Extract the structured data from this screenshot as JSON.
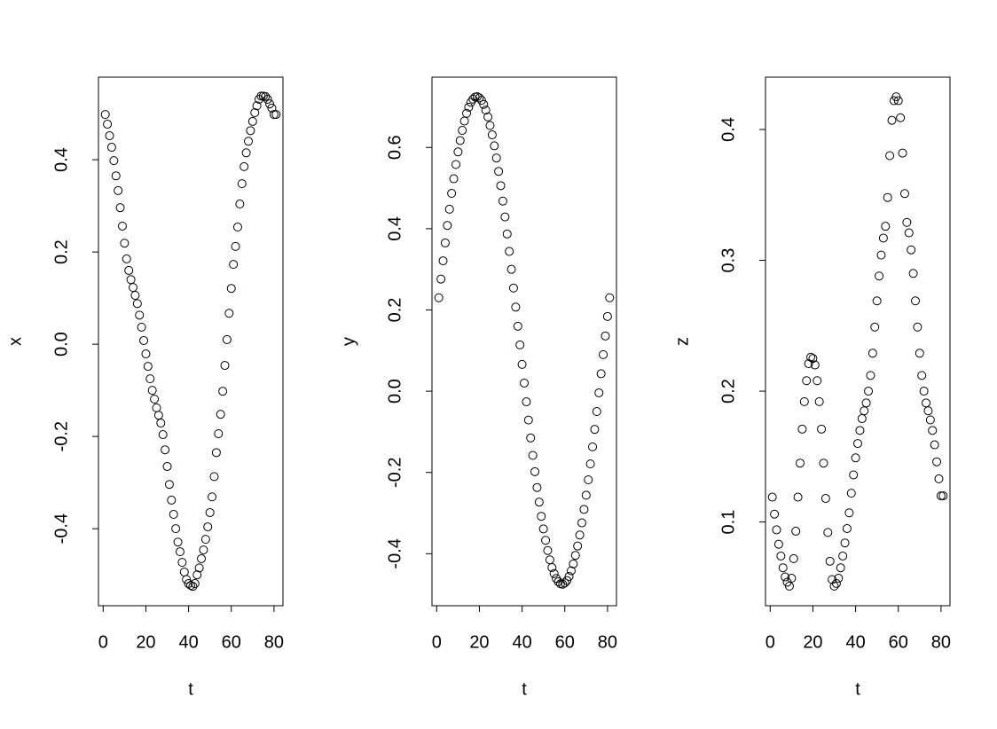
{
  "chart_data": [
    {
      "type": "scatter",
      "xlabel": "t",
      "ylabel": "x",
      "color": "#000000",
      "x": [
        1,
        2,
        3,
        4,
        5,
        6,
        7,
        8,
        9,
        10,
        11,
        12,
        13,
        14,
        15,
        16,
        17,
        18,
        19,
        20,
        21,
        22,
        23,
        24,
        25,
        26,
        27,
        28,
        29,
        30,
        31,
        32,
        33,
        34,
        35,
        36,
        37,
        38,
        39,
        40,
        41,
        42,
        43,
        44,
        45,
        46,
        47,
        48,
        49,
        50,
        51,
        52,
        53,
        54,
        55,
        56,
        57,
        58,
        59,
        60,
        61,
        62,
        63,
        64,
        65,
        66,
        67,
        68,
        69,
        70,
        71,
        72,
        73,
        74,
        75,
        76,
        77,
        78,
        79,
        80,
        81
      ],
      "values": [
        0.498,
        0.477,
        0.452,
        0.427,
        0.398,
        0.365,
        0.333,
        0.296,
        0.256,
        0.219,
        0.185,
        0.16,
        0.14,
        0.123,
        0.106,
        0.088,
        0.063,
        0.037,
        0.008,
        -0.021,
        -0.048,
        -0.075,
        -0.1,
        -0.119,
        -0.138,
        -0.154,
        -0.171,
        -0.196,
        -0.229,
        -0.265,
        -0.304,
        -0.338,
        -0.369,
        -0.4,
        -0.429,
        -0.45,
        -0.473,
        -0.494,
        -0.51,
        -0.519,
        -0.523,
        -0.525,
        -0.519,
        -0.5,
        -0.485,
        -0.465,
        -0.446,
        -0.423,
        -0.396,
        -0.365,
        -0.331,
        -0.287,
        -0.235,
        -0.194,
        -0.152,
        -0.102,
        -0.046,
        0.01,
        0.067,
        0.121,
        0.173,
        0.212,
        0.254,
        0.304,
        0.348,
        0.385,
        0.415,
        0.44,
        0.463,
        0.483,
        0.502,
        0.517,
        0.531,
        0.538,
        0.538,
        0.537,
        0.531,
        0.521,
        0.512,
        0.498,
        0.498
      ],
      "xlim": [
        -2.2,
        84.2
      ],
      "ylim": [
        -0.567,
        0.579
      ],
      "xticks": [
        0,
        20,
        40,
        60,
        80
      ],
      "yticks": [
        -0.4,
        -0.2,
        {
          "value": 0,
          "label": "0.0"
        },
        0.2,
        0.4
      ]
    },
    {
      "type": "scatter",
      "xlabel": "t",
      "ylabel": "y",
      "color": "#000000",
      "x": [
        1,
        2,
        3,
        4,
        5,
        6,
        7,
        8,
        9,
        10,
        11,
        12,
        13,
        14,
        15,
        16,
        17,
        18,
        19,
        20,
        21,
        22,
        23,
        24,
        25,
        26,
        27,
        28,
        29,
        30,
        31,
        32,
        33,
        34,
        35,
        36,
        37,
        38,
        39,
        40,
        41,
        42,
        43,
        44,
        45,
        46,
        47,
        48,
        49,
        50,
        51,
        52,
        53,
        54,
        55,
        56,
        57,
        58,
        59,
        60,
        61,
        62,
        63,
        64,
        65,
        66,
        67,
        68,
        69,
        70,
        71,
        72,
        73,
        74,
        75,
        76,
        77,
        78,
        79,
        80,
        81
      ],
      "values": [
        0.23,
        0.276,
        0.321,
        0.365,
        0.408,
        0.448,
        0.487,
        0.523,
        0.558,
        0.589,
        0.617,
        0.642,
        0.665,
        0.684,
        0.699,
        0.711,
        0.719,
        0.724,
        0.725,
        0.722,
        0.716,
        0.706,
        0.692,
        0.675,
        0.654,
        0.631,
        0.604,
        0.574,
        0.541,
        0.506,
        0.468,
        0.429,
        0.387,
        0.344,
        0.3,
        0.254,
        0.207,
        0.16,
        0.114,
        0.066,
        0.02,
        -0.026,
        -0.071,
        -0.115,
        -0.158,
        -0.198,
        -0.237,
        -0.273,
        -0.308,
        -0.339,
        -0.367,
        -0.392,
        -0.415,
        -0.434,
        -0.449,
        -0.461,
        -0.469,
        -0.474,
        -0.475,
        -0.472,
        -0.466,
        -0.456,
        -0.442,
        -0.425,
        -0.404,
        -0.381,
        -0.354,
        -0.324,
        -0.291,
        -0.256,
        -0.218,
        -0.179,
        -0.137,
        -0.094,
        -0.05,
        -0.004,
        0.043,
        0.09,
        0.136,
        0.184,
        0.23
      ],
      "xlim": [
        -2.2,
        84.2
      ],
      "ylim": [
        -0.528,
        0.773
      ],
      "xticks": [
        0,
        20,
        40,
        60,
        80
      ],
      "yticks": [
        -0.4,
        -0.2,
        {
          "value": 0,
          "label": "0.0"
        },
        0.2,
        0.4,
        0.6
      ]
    },
    {
      "type": "scatter",
      "xlabel": "t",
      "ylabel": "z",
      "color": "#000000",
      "x": [
        1,
        2,
        3,
        4,
        5,
        6,
        7,
        8,
        9,
        10,
        11,
        12,
        13,
        14,
        15,
        16,
        17,
        18,
        19,
        20,
        21,
        22,
        23,
        24,
        25,
        26,
        27,
        28,
        29,
        30,
        31,
        32,
        33,
        34,
        35,
        36,
        37,
        38,
        39,
        40,
        41,
        42,
        43,
        44,
        45,
        46,
        47,
        48,
        49,
        50,
        51,
        52,
        53,
        54,
        55,
        56,
        57,
        58,
        59,
        60,
        61,
        62,
        63,
        64,
        65,
        66,
        67,
        68,
        69,
        70,
        71,
        72,
        73,
        74,
        75,
        76,
        77,
        78,
        79,
        80,
        81
      ],
      "values": [
        0.119,
        0.106,
        0.094,
        0.083,
        0.074,
        0.065,
        0.058,
        0.054,
        0.051,
        0.057,
        0.072,
        0.093,
        0.119,
        0.145,
        0.171,
        0.192,
        0.208,
        0.221,
        0.226,
        0.225,
        0.22,
        0.208,
        0.192,
        0.171,
        0.145,
        0.118,
        0.092,
        0.07,
        0.056,
        0.051,
        0.053,
        0.057,
        0.065,
        0.074,
        0.084,
        0.095,
        0.107,
        0.122,
        0.136,
        0.149,
        0.16,
        0.17,
        0.179,
        0.185,
        0.191,
        0.2,
        0.212,
        0.229,
        0.249,
        0.269,
        0.288,
        0.304,
        0.317,
        0.326,
        0.348,
        0.38,
        0.407,
        0.422,
        0.425,
        0.422,
        0.409,
        0.382,
        0.351,
        0.329,
        0.321,
        0.308,
        0.29,
        0.269,
        0.249,
        0.229,
        0.212,
        0.2,
        0.191,
        0.185,
        0.178,
        0.17,
        0.159,
        0.146,
        0.133,
        0.12,
        0.12
      ],
      "xlim": [
        -2.2,
        84.2
      ],
      "ylim": [
        0.036,
        0.44
      ],
      "xticks": [
        0,
        20,
        40,
        60,
        80
      ],
      "yticks": [
        0.1,
        0.2,
        0.3,
        0.4
      ]
    }
  ]
}
